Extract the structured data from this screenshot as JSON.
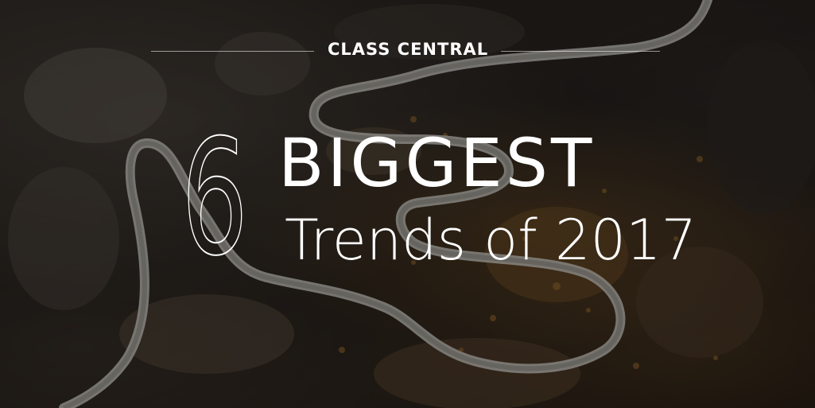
{
  "brand": {
    "name": "CLASS CENTRAL"
  },
  "headline": {
    "number": "6",
    "line1": "BIGGEST",
    "line2": "Trends of 2017"
  },
  "colors": {
    "text": "#ffffff",
    "road": "#c9c7c2",
    "terrain_dark": "#1b1614",
    "terrain_warm": "#8c5f28"
  },
  "icons": {
    "background": "winding-mountain-road-photo"
  }
}
